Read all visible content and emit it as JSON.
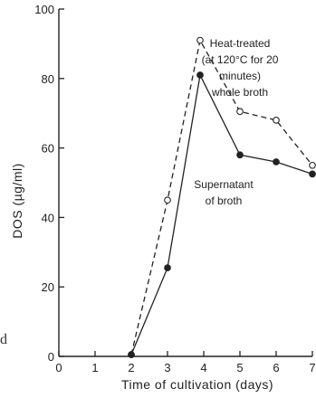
{
  "chart_data": {
    "type": "line",
    "xlabel": "Time of cultivation (days)",
    "ylabel": "DOS (µg/ml)",
    "xlim": [
      0,
      7
    ],
    "ylim": [
      0,
      100
    ],
    "x_ticks": [
      "0",
      "1",
      "2",
      "3",
      "4",
      "5",
      "6",
      "7"
    ],
    "y_ticks": [
      "0",
      "20",
      "40",
      "60",
      "80",
      "100"
    ],
    "grid": false,
    "series": [
      {
        "name": "Heat-treated (at 120°C for 20 minutes) whole broth",
        "label_lines": [
          "Heat-treated",
          "(at 120°C for 20",
          "minutes)",
          "whole broth"
        ],
        "style": "dashed",
        "marker": "open-circle",
        "color": "#222222",
        "x": [
          2,
          3,
          3.9,
          5,
          6,
          7
        ],
        "y": [
          0.5,
          45,
          91,
          70.5,
          68,
          55
        ]
      },
      {
        "name": "Supernatant of broth",
        "label_lines": [
          "Supernatant",
          "of broth"
        ],
        "style": "solid",
        "marker": "filled-circle",
        "color": "#222222",
        "x": [
          2,
          3,
          3.9,
          5,
          6,
          7
        ],
        "y": [
          0.5,
          25.5,
          81,
          58,
          56,
          52.5
        ]
      }
    ]
  },
  "stray_text": "d"
}
